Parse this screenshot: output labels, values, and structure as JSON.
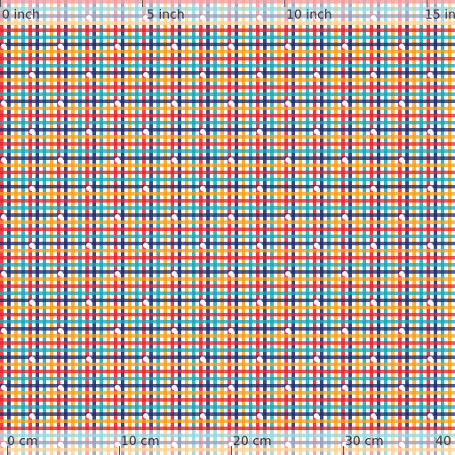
{
  "fabric": {
    "pattern": "gingham-plaid",
    "colors": {
      "red": "#e8232a",
      "navy": "#1d2a6b",
      "teal": "#1aa7b6",
      "orange": "#f5a01c",
      "white": "#ffffff"
    },
    "overlay_icon": "flower-dot-icon"
  },
  "top_ruler": {
    "unit_labels": [
      "0 inch",
      "5 inch",
      "10 inch",
      "15 in"
    ]
  },
  "bottom_ruler": {
    "unit_labels": [
      "0 cm",
      "10 cm",
      "20 cm",
      "30 cm",
      "40"
    ]
  }
}
